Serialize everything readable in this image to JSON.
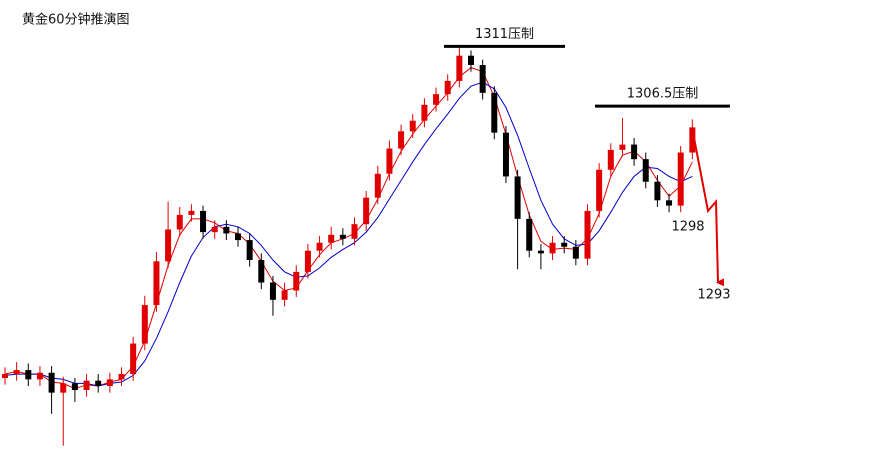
{
  "chart_data": {
    "type": "candlestick",
    "title": "黄金60分钟推演图",
    "ylim": [
      1280.5,
      1314.5
    ],
    "up_color": "#e00000",
    "down_color": "#000000",
    "open": [
      1286.0,
      1286.3,
      1286.6,
      1285.9,
      1286.4,
      1284.9,
      1285.6,
      1285.1,
      1285.8,
      1285.4,
      1285.9,
      1286.3,
      1288.6,
      1291.5,
      1294.8,
      1297.2,
      1298.3,
      1298.6,
      1297.0,
      1297.4,
      1296.9,
      1296.4,
      1294.9,
      1293.2,
      1291.9,
      1292.6,
      1294.0,
      1295.6,
      1296.2,
      1296.8,
      1296.5,
      1297.6,
      1299.6,
      1301.4,
      1303.3,
      1304.6,
      1305.4,
      1306.6,
      1307.4,
      1308.4,
      1310.3,
      1309.6,
      1307.5,
      1304.5,
      1301.2,
      1298.0,
      1295.6,
      1295.4,
      1296.2,
      1295.9,
      1295.0,
      1298.6,
      1301.7,
      1303.2,
      1303.6,
      1302.5,
      1300.8,
      1299.4,
      1299.0,
      1303.0
    ],
    "high": [
      1286.8,
      1287.2,
      1287.1,
      1286.9,
      1286.9,
      1286.1,
      1286.0,
      1286.3,
      1286.3,
      1286.4,
      1286.8,
      1289.1,
      1292.2,
      1295.5,
      1299.3,
      1298.9,
      1299.1,
      1299.0,
      1297.9,
      1297.9,
      1297.4,
      1296.9,
      1295.4,
      1293.7,
      1293.2,
      1294.5,
      1296.1,
      1296.7,
      1297.4,
      1297.3,
      1298.1,
      1300.1,
      1302.0,
      1303.9,
      1305.1,
      1305.9,
      1307.1,
      1307.9,
      1308.9,
      1311.0,
      1310.7,
      1310.0,
      1308.0,
      1305.0,
      1301.7,
      1298.5,
      1296.1,
      1296.7,
      1296.7,
      1296.4,
      1299.1,
      1302.2,
      1303.7,
      1305.6,
      1304.1,
      1303.0,
      1301.3,
      1299.9,
      1303.5,
      1305.5
    ],
    "low": [
      1285.5,
      1285.8,
      1285.4,
      1285.4,
      1283.3,
      1280.9,
      1284.2,
      1284.6,
      1284.9,
      1284.9,
      1285.4,
      1285.8,
      1288.1,
      1291.0,
      1294.3,
      1296.7,
      1297.8,
      1296.5,
      1296.5,
      1296.4,
      1295.9,
      1294.4,
      1292.7,
      1290.7,
      1291.4,
      1292.1,
      1293.5,
      1295.1,
      1295.7,
      1296.0,
      1296.0,
      1297.1,
      1299.1,
      1300.9,
      1302.8,
      1304.1,
      1304.9,
      1306.1,
      1306.9,
      1307.9,
      1309.1,
      1307.0,
      1304.0,
      1300.7,
      1294.2,
      1295.1,
      1294.2,
      1294.9,
      1295.4,
      1294.5,
      1294.5,
      1298.1,
      1301.2,
      1302.7,
      1302.0,
      1300.3,
      1298.9,
      1298.5,
      1298.5,
      1302.5
    ],
    "close": [
      1286.3,
      1286.6,
      1285.9,
      1286.4,
      1284.9,
      1285.6,
      1285.1,
      1285.8,
      1285.4,
      1285.9,
      1286.3,
      1288.6,
      1291.5,
      1294.8,
      1297.2,
      1298.3,
      1298.6,
      1297.0,
      1297.4,
      1296.9,
      1296.4,
      1294.9,
      1293.2,
      1291.9,
      1292.6,
      1294.0,
      1295.6,
      1296.2,
      1296.8,
      1296.5,
      1297.6,
      1299.6,
      1301.4,
      1303.3,
      1304.6,
      1305.4,
      1306.6,
      1307.4,
      1308.4,
      1310.3,
      1309.6,
      1307.5,
      1304.5,
      1301.2,
      1298.0,
      1295.6,
      1295.4,
      1296.2,
      1295.9,
      1295.0,
      1298.6,
      1301.7,
      1303.2,
      1303.6,
      1302.5,
      1300.8,
      1299.4,
      1299.0,
      1303.0,
      1304.9
    ],
    "lines": [
      {
        "color": "#e00000",
        "values": [
          1286.3,
          1286.5,
          1286.3,
          1286.3,
          1285.7,
          1285.6,
          1285.2,
          1285.5,
          1285.4,
          1285.7,
          1285.9,
          1286.9,
          1288.8,
          1291.6,
          1294.5,
          1296.8,
          1298.0,
          1298.0,
          1297.7,
          1297.1,
          1296.9,
          1296.1,
          1294.8,
          1293.3,
          1292.6,
          1292.8,
          1294.1,
          1295.3,
          1296.2,
          1296.5,
          1296.9,
          1297.9,
          1299.5,
          1301.4,
          1303.1,
          1304.4,
          1305.5,
          1306.5,
          1307.5,
          1308.7,
          1309.4,
          1309.1,
          1307.2,
          1304.4,
          1301.2,
          1298.3,
          1296.3,
          1295.7,
          1295.8,
          1295.7,
          1296.5,
          1298.4,
          1301.2,
          1302.8,
          1303.1,
          1302.3,
          1300.9,
          1299.7,
          1300.5,
          1302.3
        ]
      },
      {
        "color": "#0000c8",
        "values": [
          1286.2,
          1286.3,
          1286.3,
          1286.3,
          1286.0,
          1285.9,
          1285.6,
          1285.6,
          1285.4,
          1285.6,
          1285.7,
          1286.2,
          1287.3,
          1289.0,
          1291.0,
          1293.2,
          1295.2,
          1296.6,
          1297.4,
          1297.6,
          1297.4,
          1296.9,
          1296.0,
          1294.9,
          1294.0,
          1293.6,
          1293.7,
          1294.3,
          1295.1,
          1295.7,
          1296.2,
          1297.0,
          1298.1,
          1299.5,
          1300.9,
          1302.3,
          1303.6,
          1304.8,
          1305.9,
          1307.1,
          1308.0,
          1308.3,
          1307.8,
          1306.4,
          1304.3,
          1301.8,
          1299.4,
          1297.6,
          1296.5,
          1296.0,
          1296.1,
          1297.1,
          1298.5,
          1300.0,
          1301.2,
          1301.9,
          1301.8,
          1301.2,
          1300.8,
          1301.2
        ]
      }
    ],
    "resistance_lines": [
      {
        "label": "1311压制",
        "value": 1311
      },
      {
        "label": "1306.5压制",
        "value": 1306.5
      }
    ],
    "projection": {
      "color": "#e00000",
      "values": [
        1304.9,
        1298.6,
        1299.3,
        1293.2
      ]
    },
    "annotations": [
      {
        "label": "1298",
        "value": 1298
      },
      {
        "label": "1293",
        "value": 1293
      }
    ]
  }
}
